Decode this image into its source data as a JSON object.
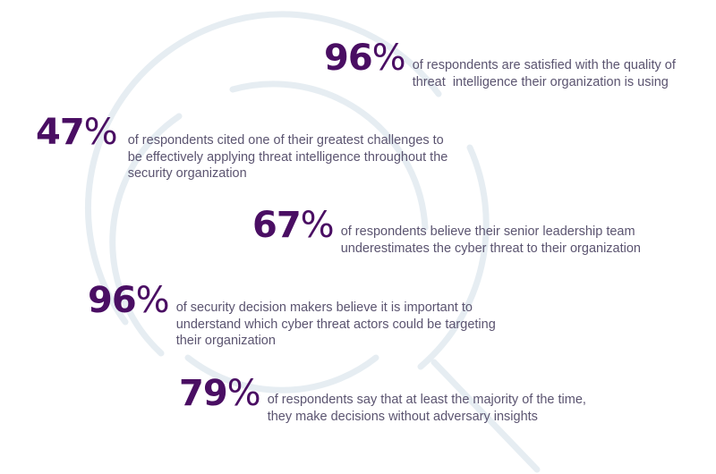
{
  "colors": {
    "accent": "#4a0e63",
    "text": "#5b5470",
    "graphic": "#e6edf2"
  },
  "graphic": {
    "icon": "magnifying-glass"
  },
  "stats": [
    {
      "value": "96",
      "unit": "%",
      "text": "of respondents are satisfied with the quality of\nthreat  intelligence their organization is using"
    },
    {
      "value": "47",
      "unit": "%",
      "text": "of respondents cited one of their greatest challenges to\nbe effectively applying threat intelligence throughout the\nsecurity organization"
    },
    {
      "value": "67",
      "unit": "%",
      "text": "of respondents believe their senior leadership team\nunderestimates the cyber threat to their organization"
    },
    {
      "value": "96",
      "unit": "%",
      "text": "of security decision makers believe it is important to\nunderstand which cyber threat actors could be targeting\ntheir organization"
    },
    {
      "value": "79",
      "unit": "%",
      "text": "of respondents say that at least the majority of the time,\nthey make decisions without adversary insights"
    }
  ]
}
